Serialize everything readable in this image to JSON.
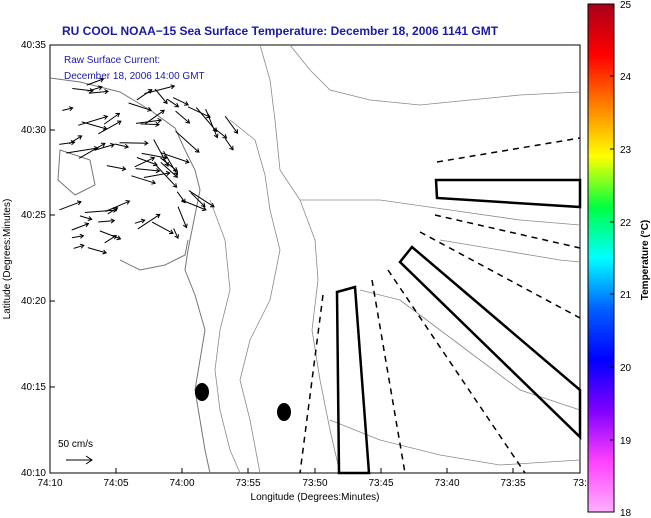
{
  "title": "RU COOL  NOAA−15  Sea Surface Temperature:  December 18, 2006 1141 GMT",
  "annotation": {
    "line1": "Raw Surface Current:",
    "line2": "December 18, 2006 14:00 GMT"
  },
  "scale": {
    "label": "50 cm/s"
  },
  "axes": {
    "xlabel": "Longitude (Degrees:Minutes)",
    "ylabel": "Latitude (Degrees:Minutes)",
    "xticks": [
      "74:10",
      "74:05",
      "74:00",
      "73:55",
      "73:50",
      "73:45",
      "73:40",
      "73:35",
      "73:3"
    ],
    "yticks": [
      "40:35",
      "40:30",
      "40:25",
      "40:20",
      "40:15",
      "40:10"
    ]
  },
  "colorbar": {
    "label": "Temperature (°C)",
    "ticks": [
      "25",
      "24",
      "23",
      "22",
      "21",
      "20",
      "19",
      "18"
    ],
    "colors": [
      "#a8001a",
      "#ff0000",
      "#ff8000",
      "#ffff00",
      "#00ff40",
      "#00ffff",
      "#0060ff",
      "#0000ff",
      "#8000ff",
      "#ff40ff",
      "#ffb0ff"
    ]
  }
}
